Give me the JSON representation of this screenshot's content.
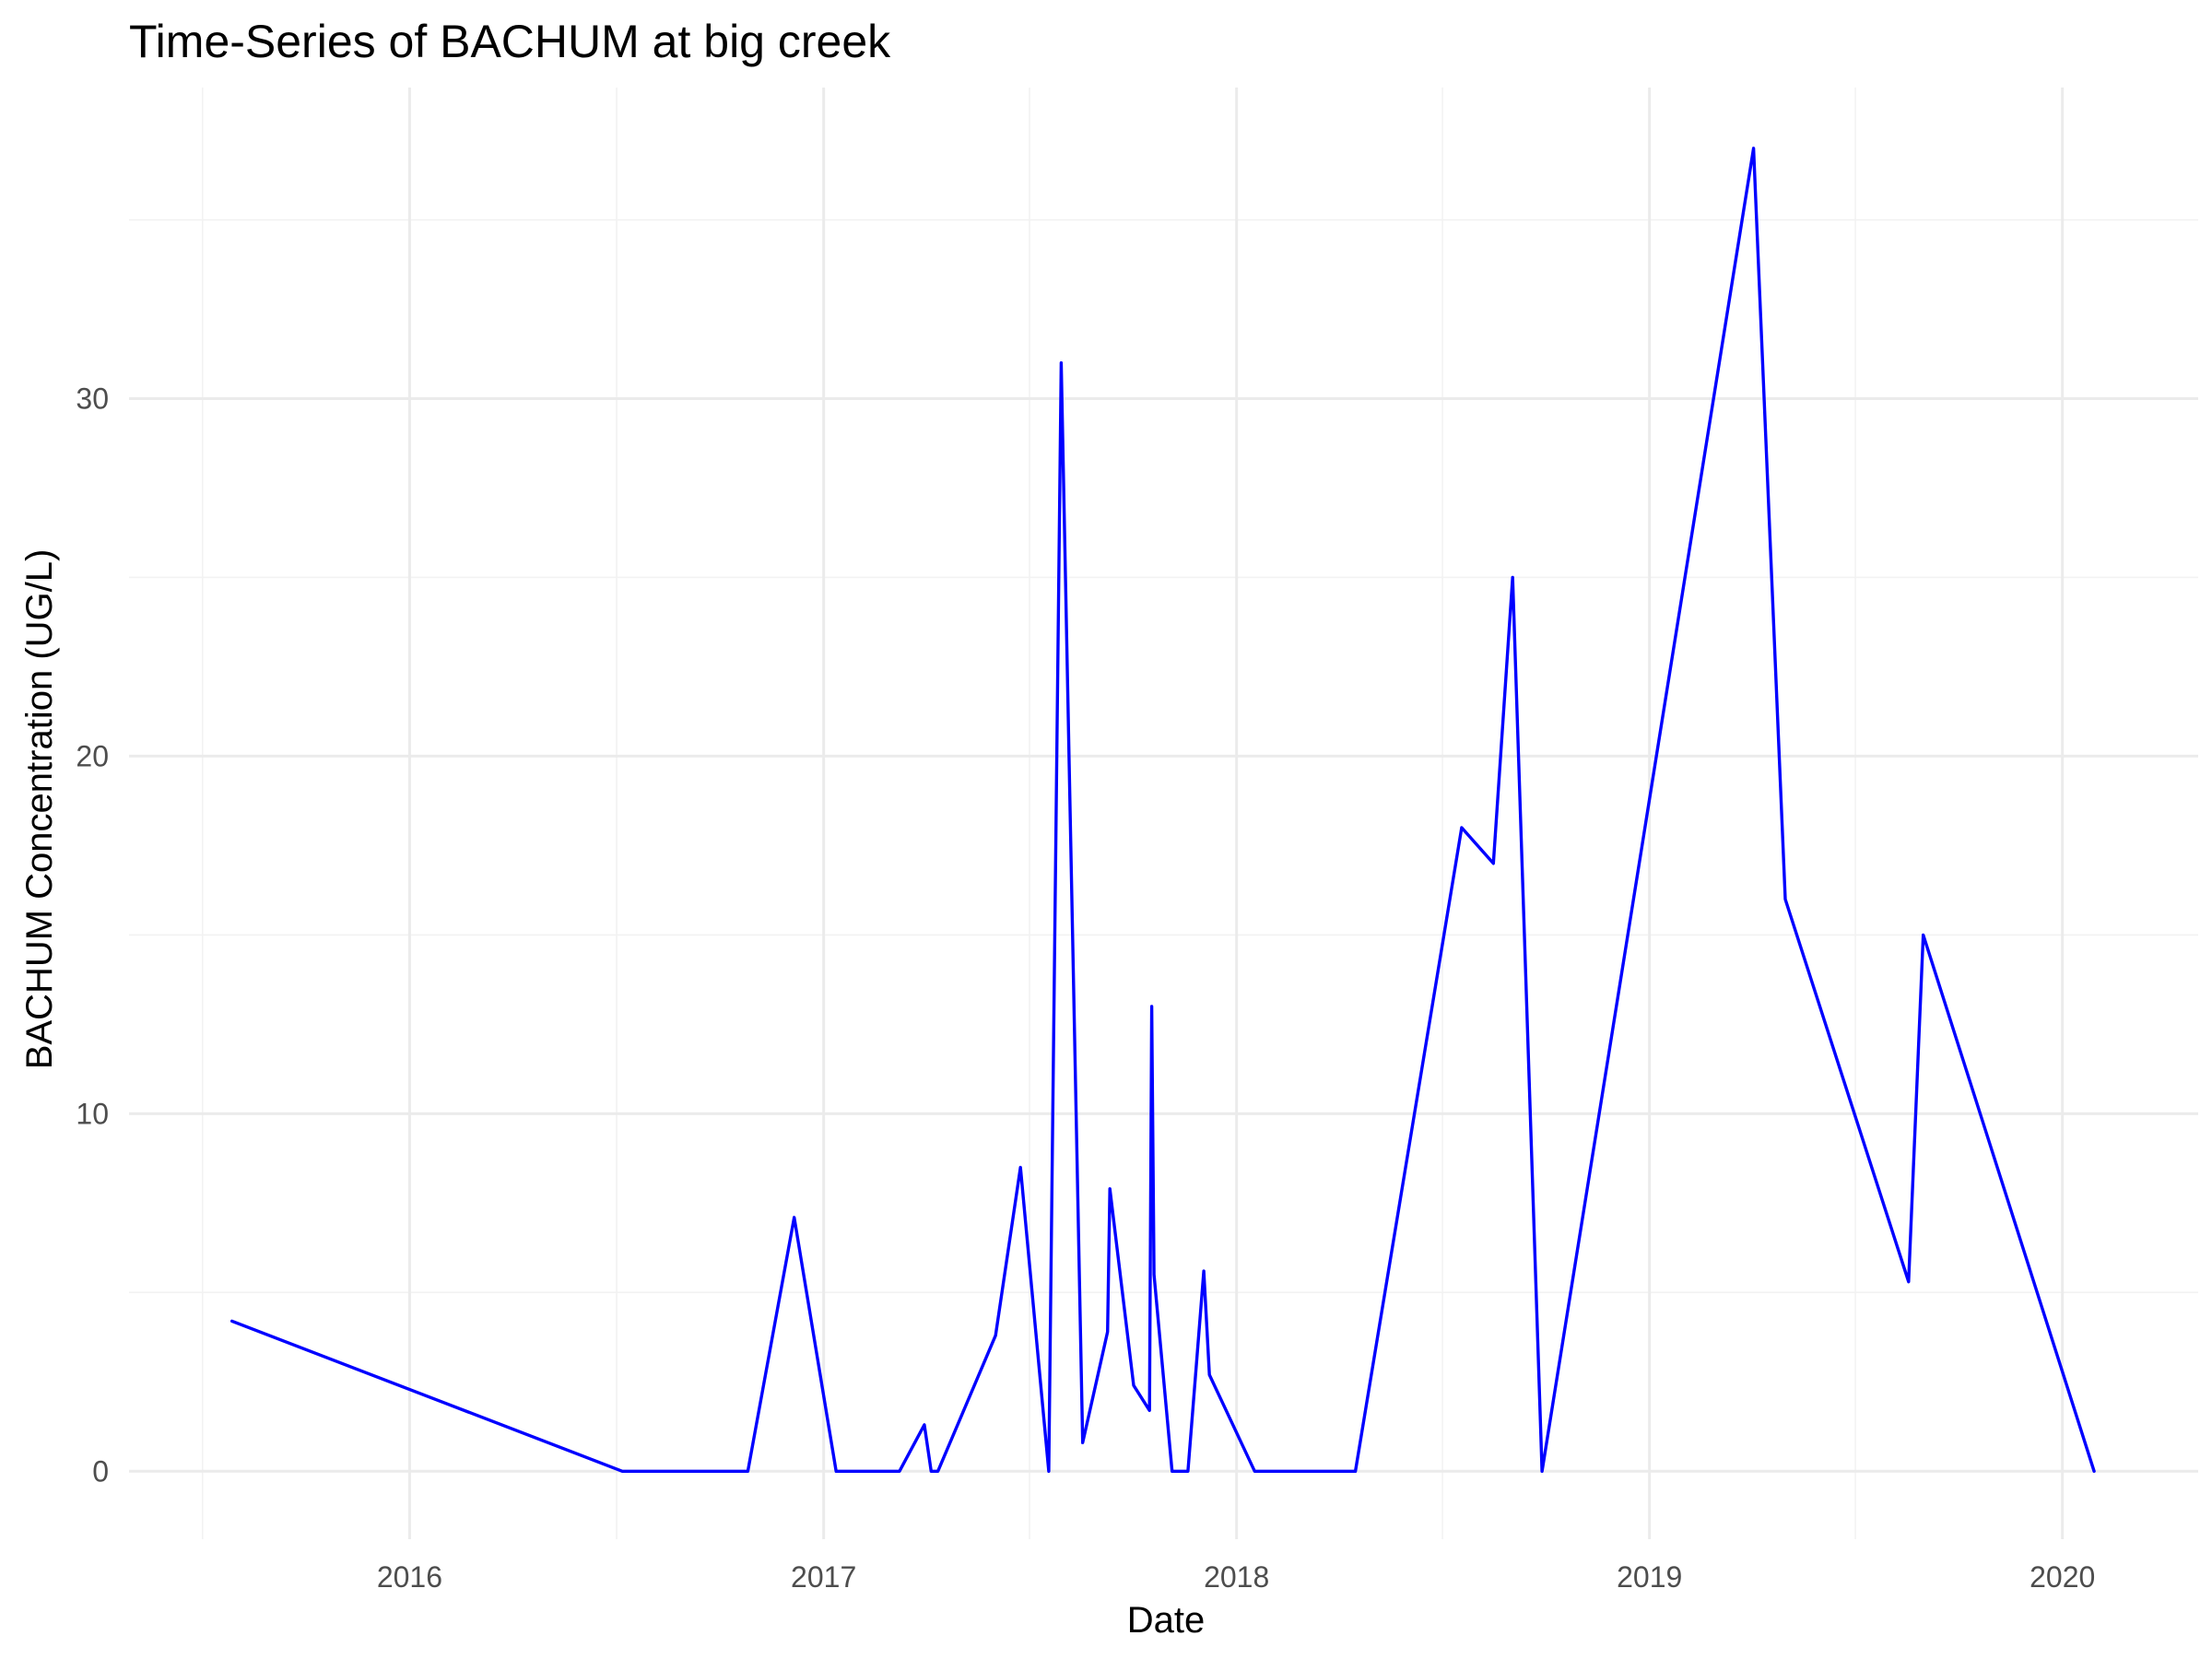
{
  "chart_data": {
    "type": "line",
    "title": "Time-Series of BACHUM at big creek",
    "xlabel": "Date",
    "ylabel": "BACHUM Concentration (UG/L)",
    "xlim": [
      "2015-04-28",
      "2020-04-30"
    ],
    "ylim": [
      -1.9,
      38.7
    ],
    "x_major_ticks": [
      {
        "date": "2016-01-01",
        "label": "2016"
      },
      {
        "date": "2017-01-01",
        "label": "2017"
      },
      {
        "date": "2018-01-01",
        "label": "2018"
      },
      {
        "date": "2019-01-01",
        "label": "2019"
      },
      {
        "date": "2020-01-01",
        "label": "2020"
      }
    ],
    "x_minor_ticks": [
      "2015-07-02",
      "2016-07-02",
      "2017-07-02",
      "2018-07-02",
      "2019-07-02"
    ],
    "y_major_ticks": [
      0,
      10,
      20,
      30
    ],
    "y_minor_ticks": [
      5,
      15,
      25,
      35
    ],
    "grid": true,
    "legend": "none",
    "series": [
      {
        "color": "#0000ff",
        "points": [
          {
            "x": "2015-07-28",
            "y": 4.2
          },
          {
            "x": "2016-07-07",
            "y": 0
          },
          {
            "x": "2016-10-26",
            "y": 0
          },
          {
            "x": "2016-12-06",
            "y": 7.1
          },
          {
            "x": "2017-01-12",
            "y": 0
          },
          {
            "x": "2017-03-09",
            "y": 0
          },
          {
            "x": "2017-03-31",
            "y": 1.3
          },
          {
            "x": "2017-04-06",
            "y": 0
          },
          {
            "x": "2017-04-12",
            "y": 0
          },
          {
            "x": "2017-06-02",
            "y": 3.8
          },
          {
            "x": "2017-06-24",
            "y": 8.5
          },
          {
            "x": "2017-07-19",
            "y": 0
          },
          {
            "x": "2017-07-30",
            "y": 31.0
          },
          {
            "x": "2017-08-18",
            "y": 0.8
          },
          {
            "x": "2017-09-09",
            "y": 3.9
          },
          {
            "x": "2017-09-11",
            "y": 7.9
          },
          {
            "x": "2017-10-02",
            "y": 2.4
          },
          {
            "x": "2017-10-16",
            "y": 1.7
          },
          {
            "x": "2017-10-18",
            "y": 13.0
          },
          {
            "x": "2017-10-20",
            "y": 5.5
          },
          {
            "x": "2017-11-05",
            "y": 0
          },
          {
            "x": "2017-11-19",
            "y": 0
          },
          {
            "x": "2017-12-03",
            "y": 5.6
          },
          {
            "x": "2017-12-08",
            "y": 2.7
          },
          {
            "x": "2018-01-17",
            "y": 0
          },
          {
            "x": "2018-04-16",
            "y": 0
          },
          {
            "x": "2018-07-19",
            "y": 18.0
          },
          {
            "x": "2018-08-16",
            "y": 17.0
          },
          {
            "x": "2018-09-02",
            "y": 25.0
          },
          {
            "x": "2018-09-28",
            "y": 0
          },
          {
            "x": "2019-04-03",
            "y": 37.0
          },
          {
            "x": "2019-05-01",
            "y": 16.0
          },
          {
            "x": "2019-08-18",
            "y": 5.3
          },
          {
            "x": "2019-08-31",
            "y": 15.0
          },
          {
            "x": "2020-01-29",
            "y": 0
          }
        ]
      }
    ]
  }
}
